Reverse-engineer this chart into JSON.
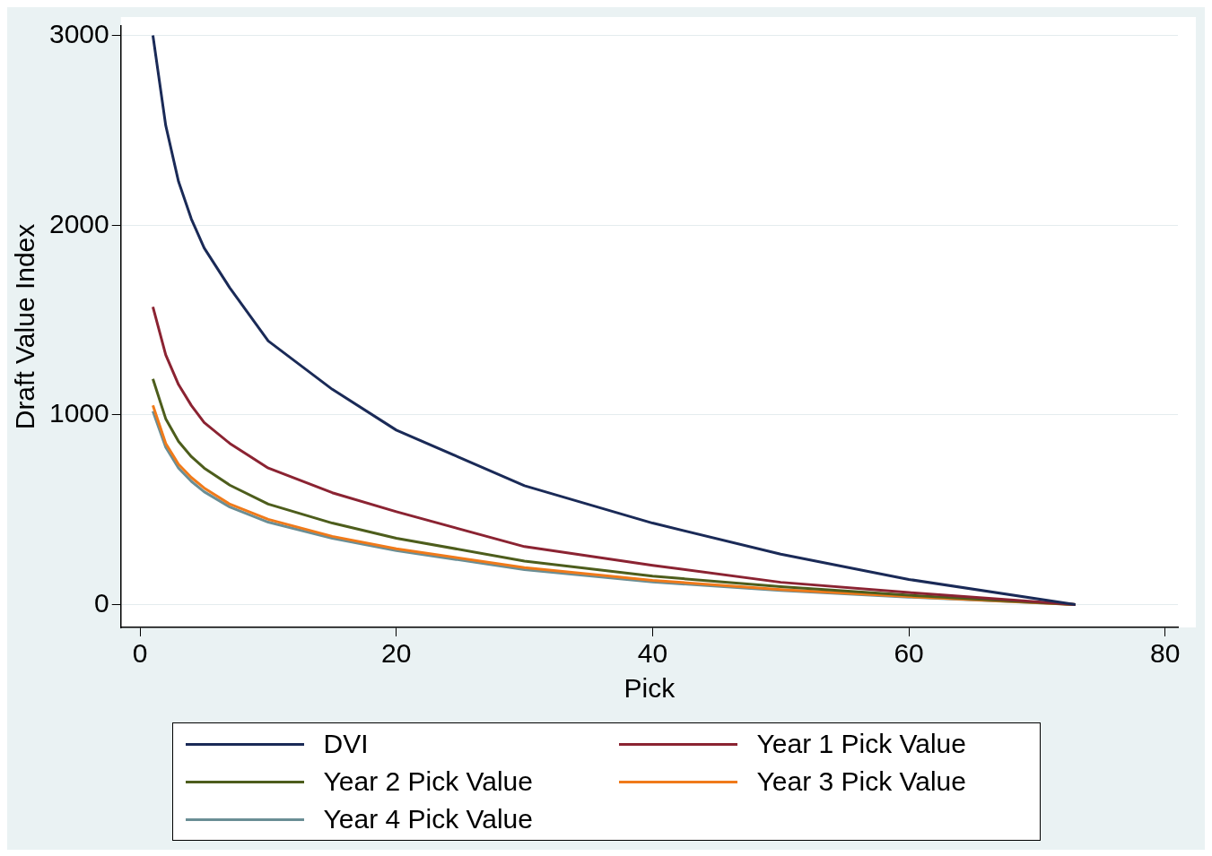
{
  "chart_data": {
    "type": "line",
    "xlabel": "Pick",
    "ylabel": "Draft Value Index",
    "x": [
      1,
      2,
      3,
      4,
      5,
      7,
      10,
      15,
      20,
      30,
      40,
      50,
      60,
      73
    ],
    "series": [
      {
        "name": "DVI",
        "color": "#1a2a57",
        "values": [
          3000,
          2526,
          2230,
          2033,
          1880,
          1670,
          1390,
          1135,
          920,
          627,
          430,
          266,
          133,
          0
        ]
      },
      {
        "name": "Year 1 Pick Value",
        "color": "#8b2332",
        "values": [
          1570,
          1317,
          1160,
          1050,
          960,
          850,
          720,
          590,
          490,
          306,
          207,
          118,
          64,
          0
        ]
      },
      {
        "name": "Year 2 Pick Value",
        "color": "#4d5d1c",
        "values": [
          1190,
          980,
          860,
          780,
          720,
          630,
          530,
          430,
          350,
          230,
          150,
          95,
          50,
          0
        ]
      },
      {
        "name": "Year 3 Pick Value",
        "color": "#f07a1a",
        "values": [
          1050,
          850,
          740,
          670,
          615,
          530,
          450,
          360,
          295,
          195,
          128,
          80,
          43,
          0
        ]
      },
      {
        "name": "Year 4 Pick Value",
        "color": "#6a8e95",
        "values": [
          1020,
          830,
          720,
          650,
          595,
          515,
          435,
          350,
          285,
          185,
          120,
          75,
          40,
          0
        ]
      }
    ],
    "xlim": [
      -1.5,
      81
    ],
    "xticks": [
      0,
      20,
      40,
      60,
      80
    ],
    "ylim": [
      -120,
      3050
    ],
    "yticks": [
      0,
      1000,
      2000,
      3000
    ],
    "grid": "y",
    "legend": "bottom",
    "marker": "none",
    "line_style": "solid"
  }
}
